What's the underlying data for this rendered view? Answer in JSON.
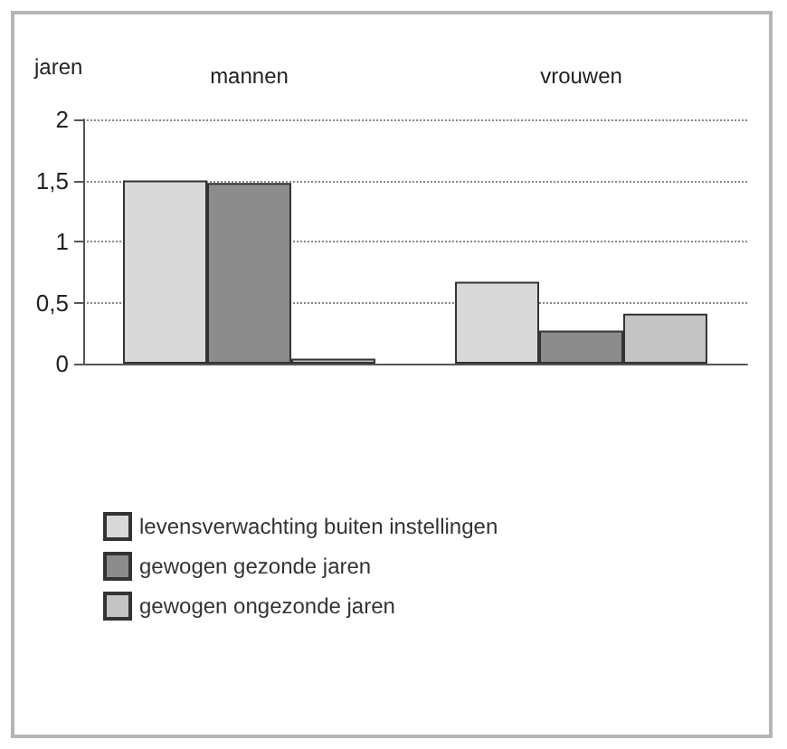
{
  "chart_data": {
    "type": "bar",
    "ylabel": "jaren",
    "categories": [
      "mannen",
      "vrouwen"
    ],
    "series": [
      {
        "name": "levensverwachting buiten instellingen",
        "color": "#d9d9d9",
        "values": [
          1.5,
          0.67
        ]
      },
      {
        "name": "gewogen gezonde jaren",
        "color": "#8c8c8c",
        "values": [
          1.48,
          0.27
        ]
      },
      {
        "name": "gewogen ongezonde jaren",
        "color": "#c4c4c4",
        "values": [
          0.04,
          0.41
        ]
      }
    ],
    "ylim": [
      0,
      2
    ],
    "yticks": [
      0,
      {
        "value": 0.5,
        "label": "0,5"
      },
      1,
      {
        "value": 1.5,
        "label": "1,5"
      },
      2
    ],
    "grid": "y",
    "legend": "bottom left"
  }
}
